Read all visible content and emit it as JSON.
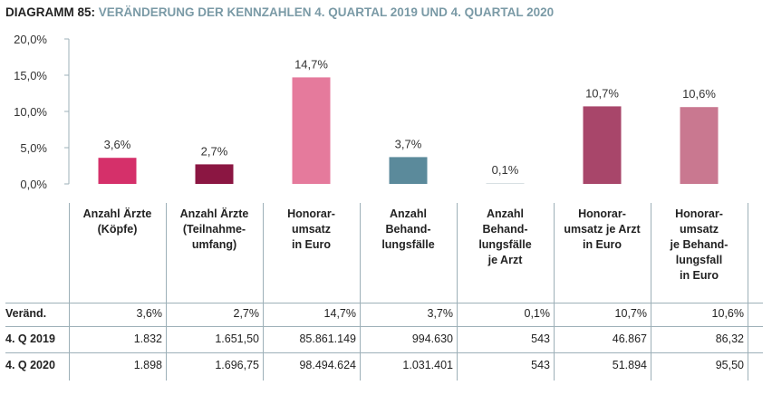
{
  "title": {
    "label": "DIAGRAMM 85:",
    "text": "VERÄNDERUNG DER KENNZAHLEN 4. QUARTAL 2019 UND 4. QUARTAL 2020"
  },
  "chart_data": {
    "type": "bar",
    "categories": [
      "Anzahl Ärzte\n(Köpfe)",
      "Anzahl Ärzte\n(Teilnahme-\numfang)",
      "Honorar-\numsatz\nin Euro",
      "Anzahl\nBehand-\nlungsfälle",
      "Anzahl\nBehand-\nlungsfälle\nje Arzt",
      "Honorar-\numsatz je Arzt\nin Euro",
      "Honorar-\numsatz\nje Behand-\nlungsfall\nin Euro"
    ],
    "values": [
      3.6,
      2.7,
      14.7,
      3.7,
      0.1,
      10.7,
      10.6
    ],
    "value_labels": [
      "3,6%",
      "2,7%",
      "14,7%",
      "3,7%",
      "0,1%",
      "10,7%",
      "10,6%"
    ],
    "colors": [
      "#d5306a",
      "#8b1642",
      "#e57a9c",
      "#5b8a9b",
      "#cfd8dc",
      "#a8466a",
      "#c97890"
    ],
    "ylim": [
      0,
      20
    ],
    "yticks": [
      0,
      5,
      10,
      15,
      20
    ],
    "ytick_labels": [
      "0,0%",
      "5,0%",
      "10,0%",
      "15,0%",
      "20,0%"
    ],
    "grid": false
  },
  "table": {
    "rows": [
      {
        "label": "Veränd.",
        "values": [
          "3,6%",
          "2,7%",
          "14,7%",
          "3,7%",
          "0,1%",
          "10,7%",
          "10,6%"
        ]
      },
      {
        "label": "4. Q 2019",
        "values": [
          "1.832",
          "1.651,50",
          "85.861.149",
          "994.630",
          "543",
          "46.867",
          "86,32"
        ]
      },
      {
        "label": "4. Q 2020",
        "values": [
          "1.898",
          "1.696,75",
          "98.494.624",
          "1.031.401",
          "543",
          "51.894",
          "95,50"
        ]
      }
    ]
  }
}
